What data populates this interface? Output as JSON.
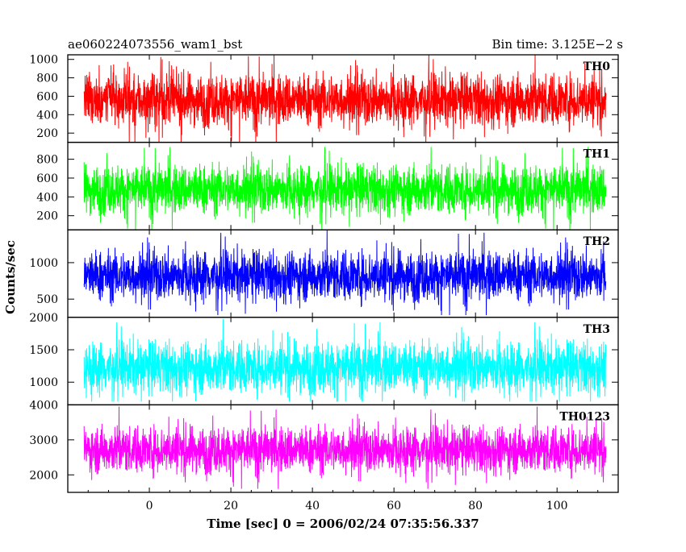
{
  "header": {
    "title": "ae060224073556_wam1_bst",
    "bin_time": "Bin time: 3.125E−2 s"
  },
  "chart_data": {
    "type": "line",
    "xlabel": "Time [sec] 0 = 2006/02/24 07:35:56.337",
    "ylabel": "Counts/sec",
    "xlim": [
      -20,
      115
    ],
    "x_range": [
      -16,
      112
    ],
    "x_ticks": [
      0,
      20,
      40,
      60,
      80,
      100
    ],
    "bin_time": 0.03125,
    "panels": [
      {
        "name": "TH0",
        "color": "#ff0000",
        "ylim": [
          100,
          1050
        ],
        "yticks": [
          200,
          400,
          600,
          800,
          1000
        ],
        "mean": 560,
        "spread": 140,
        "min": 100,
        "max": 1050
      },
      {
        "name": "TH1",
        "color": "#00ff00",
        "ylim": [
          50,
          980
        ],
        "yticks": [
          200,
          400,
          600,
          800
        ],
        "mean": 480,
        "spread": 130,
        "min": 50,
        "max": 930
      },
      {
        "name": "TH2",
        "color": "#0000ff",
        "ylim": [
          250,
          1450
        ],
        "yticks": [
          500,
          1000
        ],
        "mean": 820,
        "spread": 170,
        "min": 280,
        "max": 1450
      },
      {
        "name": "TH3",
        "color": "#00ffff",
        "ylim": [
          650,
          2000
        ],
        "yticks": [
          1000,
          1500,
          2000
        ],
        "mean": 1230,
        "spread": 200,
        "min": 700,
        "max": 2000
      },
      {
        "name": "TH0123",
        "color": "#ff00ff",
        "ylim": [
          1500,
          4000
        ],
        "yticks": [
          2000,
          3000,
          4000
        ],
        "mean": 2720,
        "spread": 330,
        "min": 1600,
        "max": 4000
      }
    ]
  }
}
